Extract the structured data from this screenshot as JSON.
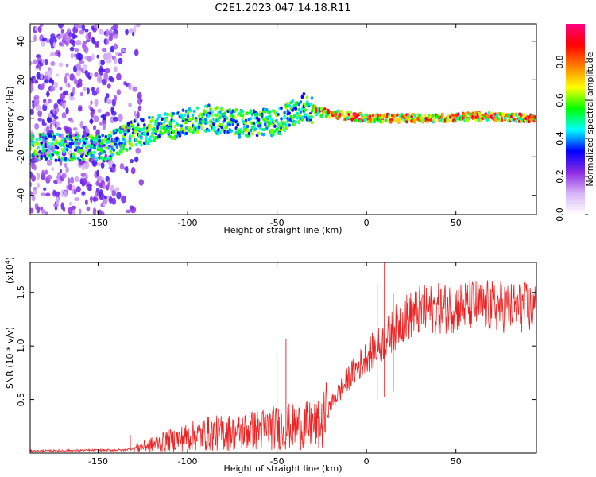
{
  "page_title": "C2E1.2023.047.14.18.R11",
  "chart_data": [
    {
      "type": "heatmap",
      "title": "C2E1.2023.047.14.18.R11",
      "xlabel": "Height of straight line (km)",
      "ylabel": "Frequency (Hz)",
      "xlim": [
        -188,
        95
      ],
      "ylim": [
        -50,
        49
      ],
      "xticks": [
        -150,
        -100,
        -50,
        0,
        50
      ],
      "yticks": [
        -40,
        -20,
        0,
        20,
        40
      ],
      "colorbar": {
        "label": "Normalized spectral amplitude",
        "range": [
          0,
          1
        ],
        "ticks": [
          "0.0",
          "0.2",
          "0.4",
          "0.6",
          "0.8"
        ],
        "colors": [
          "#ffffff",
          "#d8b4f8",
          "#8a2be2",
          "#0000ff",
          "#00ffff",
          "#00ff00",
          "#ffff00",
          "#ff8000",
          "#ff0000",
          "#ff0080"
        ]
      },
      "ridge_frequency": [
        {
          "height": -145,
          "freq": -15
        },
        {
          "height": -130,
          "freq": -8
        },
        {
          "height": -110,
          "freq": -4
        },
        {
          "height": -90,
          "freq": 0
        },
        {
          "height": -70,
          "freq": -3
        },
        {
          "height": -50,
          "freq": -2
        },
        {
          "height": -35,
          "freq": 6
        },
        {
          "height": -25,
          "freq": 3
        },
        {
          "height": 0,
          "freq": 0
        },
        {
          "height": 40,
          "freq": 0
        },
        {
          "height": 60,
          "freq": 1
        },
        {
          "height": 95,
          "freq": 0
        }
      ]
    },
    {
      "type": "line",
      "xlabel": "Height of straight line (km)",
      "ylabel": "SNR (10 * v/v)",
      "y_multiplier": "(x10^4)",
      "y_multiplier_base": "(x10",
      "y_multiplier_exp": "4",
      "y_multiplier_close": ")",
      "xlim": [
        -188,
        95
      ],
      "ylim": [
        0,
        1.78
      ],
      "xticks": [
        -150,
        -100,
        -50,
        0,
        50
      ],
      "yticks": [
        0.5,
        1.0,
        1.5
      ],
      "yticklabels": [
        "0.5",
        "1.0",
        "1.5"
      ],
      "series": [
        {
          "name": "SNR",
          "color": "#ee2222",
          "envelope": [
            {
              "x": -188,
              "y": 0.02
            },
            {
              "x": -135,
              "y": 0.03
            },
            {
              "x": -125,
              "y": 0.06
            },
            {
              "x": -110,
              "y": 0.12
            },
            {
              "x": -90,
              "y": 0.18
            },
            {
              "x": -70,
              "y": 0.2
            },
            {
              "x": -55,
              "y": 0.23
            },
            {
              "x": -40,
              "y": 0.25
            },
            {
              "x": -25,
              "y": 0.26
            },
            {
              "x": -20,
              "y": 0.45
            },
            {
              "x": -10,
              "y": 0.7
            },
            {
              "x": 0,
              "y": 0.9
            },
            {
              "x": 10,
              "y": 1.05
            },
            {
              "x": 20,
              "y": 1.25
            },
            {
              "x": 30,
              "y": 1.33
            },
            {
              "x": 60,
              "y": 1.38
            },
            {
              "x": 95,
              "y": 1.35
            }
          ],
          "peaks": [
            {
              "x": -132,
              "y": 0.17
            },
            {
              "x": -50,
              "y": 0.93
            },
            {
              "x": -45,
              "y": 1.07
            },
            {
              "x": 6,
              "y": 1.58
            },
            {
              "x": 10,
              "y": 1.78
            },
            {
              "x": 15,
              "y": 1.49
            }
          ]
        }
      ]
    }
  ]
}
